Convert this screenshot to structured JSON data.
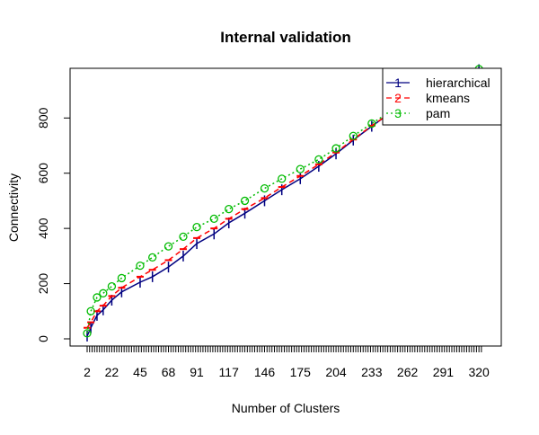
{
  "chart_data": {
    "type": "line",
    "title": "Internal validation",
    "xlabel": "Number of Clusters",
    "ylabel": "Connectivity",
    "xlim": [
      2,
      325
    ],
    "ylim": [
      0,
      980
    ],
    "x_tick_labels": [
      "2",
      "22",
      "45",
      "68",
      "91",
      "117",
      "146",
      "175",
      "204",
      "233",
      "262",
      "291",
      "320"
    ],
    "y_tick_labels": [
      "0",
      "200",
      "400",
      "600",
      "800"
    ],
    "legend_position": "top-right",
    "series": [
      {
        "name": "hierarchical",
        "symbol": "1",
        "color": "#000080",
        "line_style": "solid",
        "x": [
          2,
          5,
          10,
          15,
          22,
          30,
          45,
          55,
          68,
          80,
          91,
          105,
          117,
          130,
          146,
          160,
          175,
          190,
          204,
          218,
          233,
          247,
          262,
          276,
          291,
          305,
          320
        ],
        "y": [
          10,
          40,
          85,
          105,
          140,
          170,
          205,
          225,
          260,
          300,
          345,
          380,
          420,
          455,
          500,
          540,
          580,
          625,
          670,
          720,
          770,
          815,
          860,
          895,
          930,
          955,
          975
        ]
      },
      {
        "name": "kmeans",
        "symbol": "2",
        "color": "#ff0000",
        "line_style": "dashed",
        "x": [
          2,
          5,
          10,
          15,
          22,
          30,
          45,
          55,
          68,
          80,
          91,
          105,
          117,
          130,
          146,
          160,
          175,
          190,
          204,
          218,
          233,
          247,
          262,
          276,
          291,
          305,
          320
        ],
        "y": [
          40,
          60,
          100,
          120,
          155,
          185,
          225,
          250,
          285,
          325,
          365,
          400,
          435,
          470,
          510,
          550,
          590,
          632,
          675,
          722,
          772,
          815,
          860,
          895,
          930,
          955,
          975
        ]
      },
      {
        "name": "pam",
        "symbol": "3",
        "color": "#00bb00",
        "line_style": "dotted",
        "x": [
          2,
          5,
          10,
          15,
          22,
          30,
          45,
          55,
          68,
          80,
          91,
          105,
          117,
          130,
          146,
          160,
          175,
          190,
          204,
          218,
          233,
          247,
          262,
          276,
          291,
          305,
          320
        ],
        "y": [
          20,
          100,
          150,
          165,
          190,
          220,
          265,
          295,
          335,
          370,
          405,
          435,
          470,
          500,
          545,
          580,
          615,
          650,
          690,
          735,
          780,
          820,
          862,
          897,
          932,
          957,
          977
        ]
      }
    ]
  }
}
